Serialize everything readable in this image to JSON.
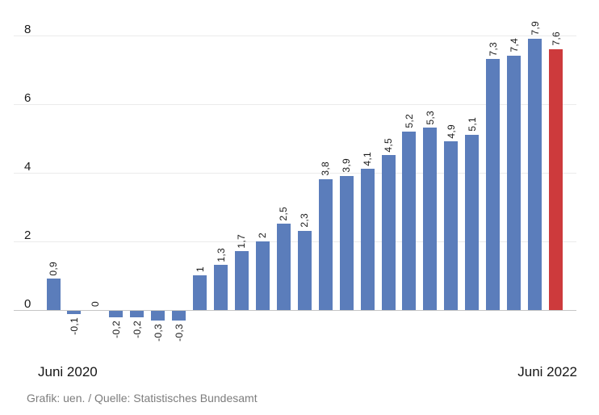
{
  "chart_data": {
    "type": "bar",
    "title": "",
    "values": [
      0.9,
      -0.1,
      0,
      -0.2,
      -0.2,
      -0.3,
      -0.3,
      1,
      1.3,
      1.7,
      2,
      2.5,
      2.3,
      3.8,
      3.9,
      4.1,
      4.5,
      5.2,
      5.3,
      4.9,
      5.1,
      7.3,
      7.4,
      7.9,
      7.6
    ],
    "value_labels": [
      "0,9",
      "-0,1",
      "0",
      "-0,2",
      "-0,2",
      "-0,3",
      "-0,3",
      "1",
      "1,3",
      "1,7",
      "2",
      "2,5",
      "2,3",
      "3,8",
      "3,9",
      "4,1",
      "4,5",
      "5,2",
      "5,3",
      "4,9",
      "5,1",
      "7,3",
      "7,4",
      "7,9",
      "7,6"
    ],
    "x_start_label": "Juni 2020",
    "x_end_label": "Juni 2022",
    "y_ticks": [
      0,
      2,
      4,
      6,
      8
    ],
    "y_tick_labels": [
      "0",
      "2",
      "4",
      "6",
      "8"
    ],
    "ylim": [
      -0.6,
      9
    ],
    "grid": true,
    "legend_position": "none",
    "bar_color": "#5b7dbb",
    "highlight_color": "#cd3a3c",
    "highlight_index": 24
  },
  "footer": {
    "credit": "Grafik: uen. / Quelle: Statistisches Bundesamt"
  }
}
